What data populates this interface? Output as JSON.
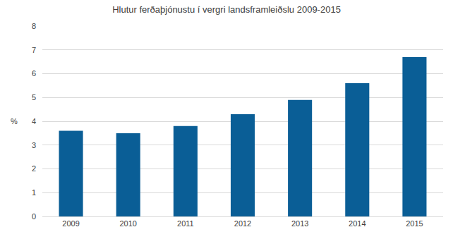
{
  "chart_data": {
    "type": "bar",
    "title": "Hlutur ferðaþjónustu í vergri landsframleiðslu 2009-2015",
    "ylabel": "%",
    "categories": [
      "2009",
      "2010",
      "2011",
      "2012",
      "2013",
      "2014",
      "2015"
    ],
    "values": [
      3.6,
      3.5,
      3.8,
      4.3,
      4.9,
      5.6,
      6.7
    ],
    "color": "#0a5e96",
    "ylim": [
      0,
      8
    ],
    "yticks": [
      0,
      1,
      2,
      3,
      4,
      5,
      6,
      7,
      8
    ],
    "grid": true
  }
}
